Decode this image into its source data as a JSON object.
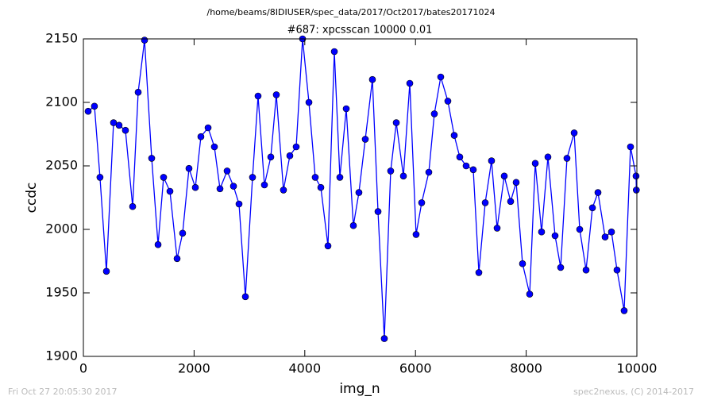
{
  "chart_data": {
    "type": "line",
    "suptitle": "/home/beams/8IDIUSER/spec_data/2017/Oct2017/bates20171024",
    "title": "#687: xpcsscan 10000 0.01",
    "xlabel": "img_n",
    "ylabel": "ccdc",
    "footer_left": "Fri Oct 27 20:05:30 2017",
    "footer_right": "spec2nexus, (C) 2014-2017",
    "color": "#0000ff",
    "marker": true,
    "xlim": [
      0,
      10000
    ],
    "ylim": [
      1900,
      2150
    ],
    "xticks": [
      0,
      2000,
      4000,
      6000,
      8000,
      10000
    ],
    "yticks": [
      1900,
      1950,
      2000,
      2050,
      2100,
      2150
    ],
    "x": [
      86,
      200,
      300,
      416,
      545,
      645,
      760,
      890,
      990,
      1105,
      1234,
      1349,
      1449,
      1564,
      1693,
      1793,
      1908,
      2023,
      2123,
      2253,
      2367,
      2468,
      2597,
      2712,
      2812,
      2927,
      3056,
      3156,
      3271,
      3386,
      3486,
      3615,
      3730,
      3845,
      3960,
      4075,
      4189,
      4290,
      4419,
      4534,
      4634,
      4749,
      4878,
      4978,
      5093,
      5222,
      5323,
      5437,
      5552,
      5653,
      5782,
      5897,
      6011,
      6112,
      6241,
      6341,
      6456,
      6585,
      6700,
      6800,
      6915,
      7044,
      7145,
      7260,
      7374,
      7475,
      7604,
      7719,
      7819,
      7934,
      8063,
      8164,
      8278,
      8393,
      8522,
      8623,
      8737,
      8867,
      8967,
      9082,
      9197,
      9297,
      9426,
      9541,
      9641,
      9770,
      9885,
      9985,
      9990
    ],
    "values": [
      2093,
      2097,
      2041,
      1967,
      2084,
      2082,
      2078,
      2018,
      2108,
      2149,
      2056,
      1988,
      2041,
      2030,
      1977,
      1997,
      2048,
      2033,
      2073,
      2080,
      2065,
      2032,
      2046,
      2034,
      2020,
      1947,
      2041,
      2105,
      2035,
      2057,
      2106,
      2031,
      2058,
      2065,
      2150,
      2100,
      2041,
      2033,
      1987,
      2140,
      2041,
      2095,
      2003,
      2029,
      2071,
      2118,
      2014,
      1914,
      2046,
      2084,
      2042,
      2115,
      1996,
      2021,
      2045,
      2091,
      2120,
      2101,
      2074,
      2057,
      2050,
      2047,
      1966,
      2021,
      2054,
      2001,
      2042,
      2022,
      2037,
      1973,
      1949,
      2052,
      1998,
      2057,
      1995,
      1970,
      2056,
      2076,
      2000,
      1968,
      2017,
      2029,
      1994,
      1998,
      1968,
      1936,
      2065,
      2042,
      2031
    ]
  }
}
